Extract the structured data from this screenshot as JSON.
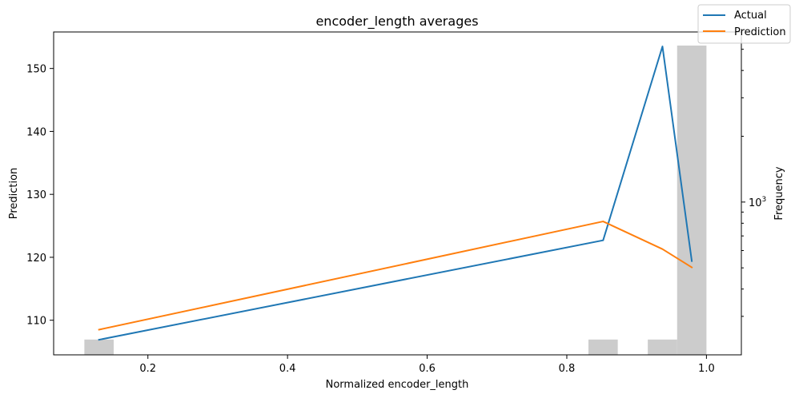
{
  "chart_data": {
    "type": "line",
    "title": "encoder_length averages",
    "xlabel": "Normalized encoder_length",
    "ylabel": "Prediction",
    "y2label": "Frequency",
    "xlim": [
      0.065,
      1.05
    ],
    "ylim": [
      104.5,
      155.8
    ],
    "y2scale": "log",
    "y2lim": [
      200,
      6000
    ],
    "x_ticks": [
      0.2,
      0.4,
      0.6,
      0.8,
      1.0
    ],
    "x_tick_labels": [
      "0.2",
      "0.4",
      "0.6",
      "0.8",
      "1.0"
    ],
    "y_ticks": [
      110,
      120,
      130,
      140,
      150
    ],
    "y_tick_labels": [
      "110",
      "120",
      "130",
      "140",
      "150"
    ],
    "y2_major_ticks": [
      1000
    ],
    "y2_major_tick_labels": [
      "10^3"
    ],
    "y2_minor_ticks": [
      300,
      400,
      500,
      600,
      700,
      800,
      900,
      2000,
      3000,
      4000,
      5000
    ],
    "series": [
      {
        "name": "Actual",
        "color": "#1f77b4",
        "x": [
          0.13,
          0.852,
          0.937,
          0.979
        ],
        "y": [
          106.9,
          122.7,
          153.5,
          119.4
        ]
      },
      {
        "name": "Prediction",
        "color": "#ff7f0e",
        "x": [
          0.13,
          0.852,
          0.937,
          0.979
        ],
        "y": [
          108.5,
          125.7,
          121.3,
          118.4
        ]
      }
    ],
    "histogram": {
      "color": "#cccccc",
      "bins": [
        {
          "x0": 0.109,
          "x1": 0.151,
          "count": 235
        },
        {
          "x0": 0.831,
          "x1": 0.873,
          "count": 235
        },
        {
          "x0": 0.916,
          "x1": 0.958,
          "count": 235
        },
        {
          "x0": 0.958,
          "x1": 1.0,
          "count": 5200
        }
      ]
    },
    "legend": {
      "position": "top-right",
      "entries": [
        "Actual",
        "Prediction"
      ]
    }
  }
}
